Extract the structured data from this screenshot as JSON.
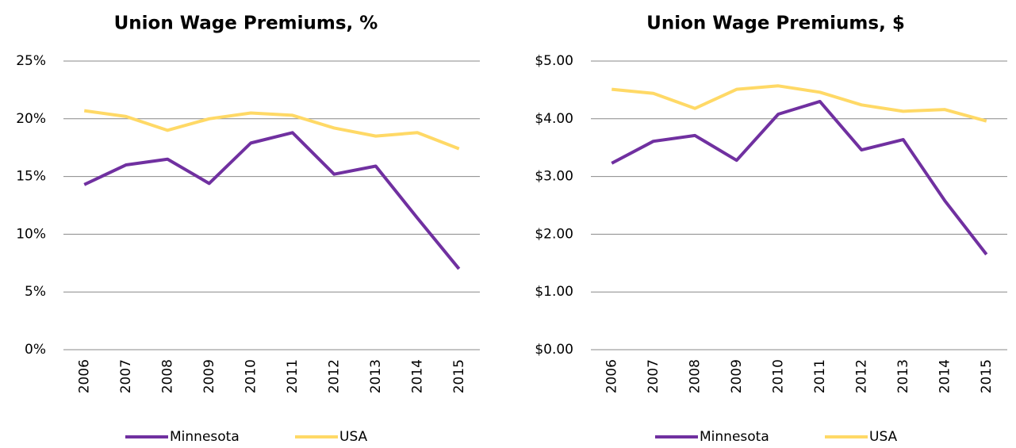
{
  "chart_data": [
    {
      "type": "line",
      "title": "Union Wage Premiums, %",
      "categories": [
        "2006",
        "2007",
        "2008",
        "2009",
        "2010",
        "2011",
        "2012",
        "2013",
        "2014",
        "2015"
      ],
      "series": [
        {
          "name": "Minnesota",
          "color": "#7030a0",
          "values": [
            14.3,
            16.0,
            16.5,
            14.4,
            17.9,
            18.8,
            15.2,
            15.9,
            11.4,
            7.0
          ]
        },
        {
          "name": "USA",
          "color": "#ffd966",
          "values": [
            20.7,
            20.2,
            19.0,
            20.0,
            20.5,
            20.3,
            19.2,
            18.5,
            18.8,
            17.4
          ]
        }
      ],
      "ylim": [
        0,
        25
      ],
      "yticks": [
        {
          "value": 0,
          "label": "0%"
        },
        {
          "value": 5,
          "label": "5%"
        },
        {
          "value": 10,
          "label": "10%"
        },
        {
          "value": 15,
          "label": "15%"
        },
        {
          "value": 20,
          "label": "20%"
        },
        {
          "value": 25,
          "label": "25%"
        }
      ],
      "grid": true,
      "legend": "bottom"
    },
    {
      "type": "line",
      "title": "Union Wage Premiums, $",
      "categories": [
        "2006",
        "2007",
        "2008",
        "2009",
        "2010",
        "2011",
        "2012",
        "2013",
        "2014",
        "2015"
      ],
      "series": [
        {
          "name": "Minnesota",
          "color": "#7030a0",
          "values": [
            3.23,
            3.61,
            3.71,
            3.28,
            4.08,
            4.3,
            3.46,
            3.64,
            2.58,
            1.65
          ]
        },
        {
          "name": "USA",
          "color": "#ffd966",
          "values": [
            4.51,
            4.44,
            4.18,
            4.51,
            4.57,
            4.46,
            4.24,
            4.13,
            4.16,
            3.96
          ]
        }
      ],
      "ylim": [
        0,
        5
      ],
      "yticks": [
        {
          "value": 0,
          "label": "$0.00"
        },
        {
          "value": 1,
          "label": "$1.00"
        },
        {
          "value": 2,
          "label": "$2.00"
        },
        {
          "value": 3,
          "label": "$3.00"
        },
        {
          "value": 4,
          "label": "$4.00"
        },
        {
          "value": 5,
          "label": "$5.00"
        }
      ],
      "grid": true,
      "legend": "bottom"
    }
  ]
}
